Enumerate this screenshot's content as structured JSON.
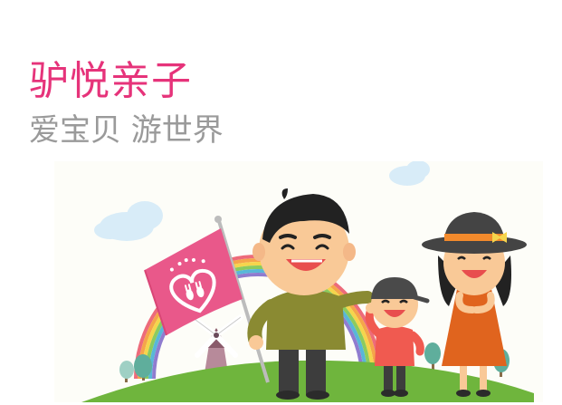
{
  "brand": {
    "title": "驴悦亲子",
    "tagline": "爱宝贝 游世界"
  },
  "illustration": {
    "scene": "family-with-flag",
    "colors": {
      "title_pink": "#e6337a",
      "tagline_gray": "#9a9a9a",
      "flag_pink": "#e9588a",
      "grass": "#6fb53d",
      "dad_shirt": "#8a8a32",
      "child_shirt": "#f05a50",
      "mom_dress": "#e0641e",
      "skin": "#f9c997"
    }
  }
}
